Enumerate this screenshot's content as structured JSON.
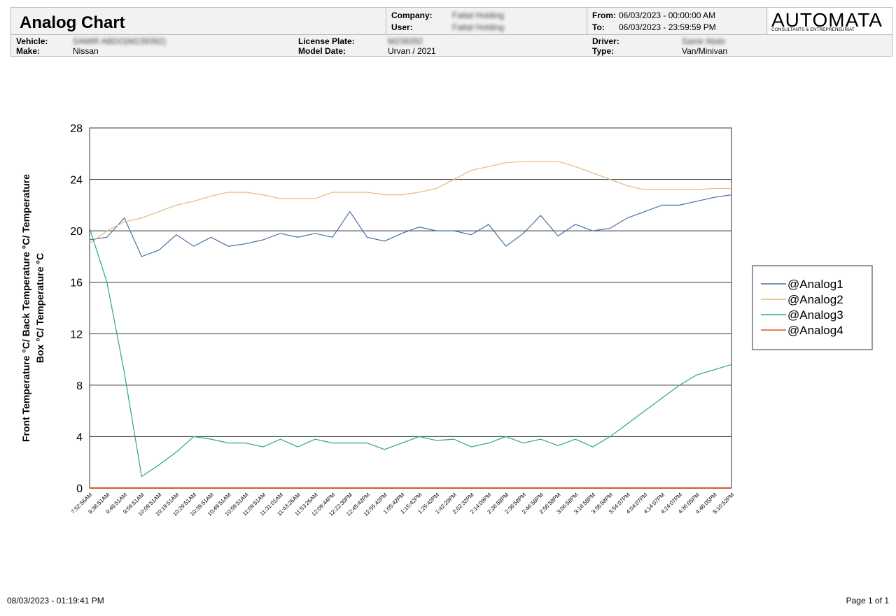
{
  "header": {
    "title": "Analog Chart",
    "company_label": "Company:",
    "company": "Fattal Holding",
    "user_label": "User:",
    "user": "Fattal Holding",
    "from_label": "From:",
    "from": "06/03/2023 - 00:00:00 AM",
    "to_label": "To:",
    "to": "06/03/2023 - 23:59:59 PM",
    "logo": "AUTOMATA",
    "logo_sub": "CONSULTANTS & ENTREPRENEURIAT"
  },
  "vehicle": {
    "vehicle_label": "Vehicle:",
    "vehicle": "SAMIR ABDO(M239392)",
    "make_label": "Make:",
    "make": "Nissan",
    "plate_label": "License Plate:",
    "plate": "M239392",
    "model_label": "Model  Date:",
    "model": "Urvan / 2021",
    "driver_label": "Driver:",
    "driver": "Samir Abdo",
    "type_label": "Type:",
    "type": "Van/Minivan"
  },
  "chart_data": {
    "type": "line",
    "ylabel": [
      "Front Temperature °C/  Back Temperature °C/  Temperature",
      "Box °C/  Temperature °C"
    ],
    "categories": [
      "7:52:56AM",
      "9:38:51AM",
      "9:48:51AM",
      "9:59:51AM",
      "10:09:51AM",
      "10:19:51AM",
      "10:29:51AM",
      "10:39:51AM",
      "10:49:51AM",
      "10:59:51AM",
      "11:09:51AM",
      "11:31:01AM",
      "11:43:26AM",
      "11:53:26AM",
      "12:09:44PM",
      "12:22:30PM",
      "12:45:42PM",
      "12:55:42PM",
      "1:05:42PM",
      "1:15:42PM",
      "1:25:42PM",
      "1:42:29PM",
      "2:02:32PM",
      "2:14:09PM",
      "2:26:58PM",
      "2:36:58PM",
      "2:46:58PM",
      "2:56:58PM",
      "3:06:58PM",
      "3:16:58PM",
      "3:38:58PM",
      "3:54:07PM",
      "4:04:07PM",
      "4:14:07PM",
      "4:24:07PM",
      "4:36:05PM",
      "4:46:05PM",
      "5:10:52PM"
    ],
    "series": [
      {
        "name": "@Analog1",
        "color": "#4a6fa5",
        "values": [
          19.3,
          19.5,
          21,
          18,
          18.5,
          19.7,
          18.8,
          19.5,
          18.8,
          19,
          19.3,
          19.8,
          19.5,
          19.8,
          19.5,
          21.5,
          19.5,
          19.2,
          19.8,
          20.3,
          20,
          20,
          19.7,
          20.5,
          18.8,
          19.8,
          21.2,
          19.6,
          20.5,
          20,
          20.2,
          21,
          21.5,
          22,
          22,
          22.3,
          22.6,
          22.8
        ]
      },
      {
        "name": "@Analog2",
        "color": "#e8b878",
        "values": [
          19,
          20,
          20.7,
          21,
          21.5,
          22,
          22.3,
          22.7,
          23,
          23,
          22.8,
          22.5,
          22.5,
          22.5,
          23,
          23,
          23,
          22.8,
          22.8,
          23,
          23.3,
          24,
          24.7,
          25,
          25.3,
          25.4,
          25.4,
          25.4,
          25,
          24.5,
          24,
          23.5,
          23.2,
          23.2,
          23.2,
          23.2,
          23.3,
          23.3
        ]
      },
      {
        "name": "@Analog3",
        "color": "#2ca87a",
        "values": [
          20.2,
          16,
          9,
          0.9,
          1.8,
          2.8,
          4,
          3.8,
          3.5,
          3.5,
          3.2,
          3.8,
          3.2,
          3.8,
          3.5,
          3.5,
          3.5,
          3,
          3.5,
          4,
          3.7,
          3.8,
          3.2,
          3.5,
          4,
          3.5,
          3.8,
          3.3,
          3.8,
          3.2,
          4,
          5,
          6,
          7,
          8,
          8.8,
          9.2,
          9.6
        ]
      },
      {
        "name": "@Analog4",
        "color": "#e0502a",
        "values": [
          0,
          0,
          0,
          0,
          0,
          0,
          0,
          0,
          0,
          0,
          0,
          0,
          0,
          0,
          0,
          0,
          0,
          0,
          0,
          0,
          0,
          0,
          0,
          0,
          0,
          0,
          0,
          0,
          0,
          0,
          0,
          0,
          0,
          0,
          0,
          0,
          0,
          0
        ]
      }
    ],
    "ylim": [
      0,
      28
    ],
    "yticks": [
      0,
      4,
      8,
      12,
      16,
      20,
      24,
      28
    ],
    "grid": true,
    "legend": "right"
  },
  "footer": {
    "printed": "08/03/2023 - 01:19:41 PM",
    "page": "Page 1 of 1"
  }
}
